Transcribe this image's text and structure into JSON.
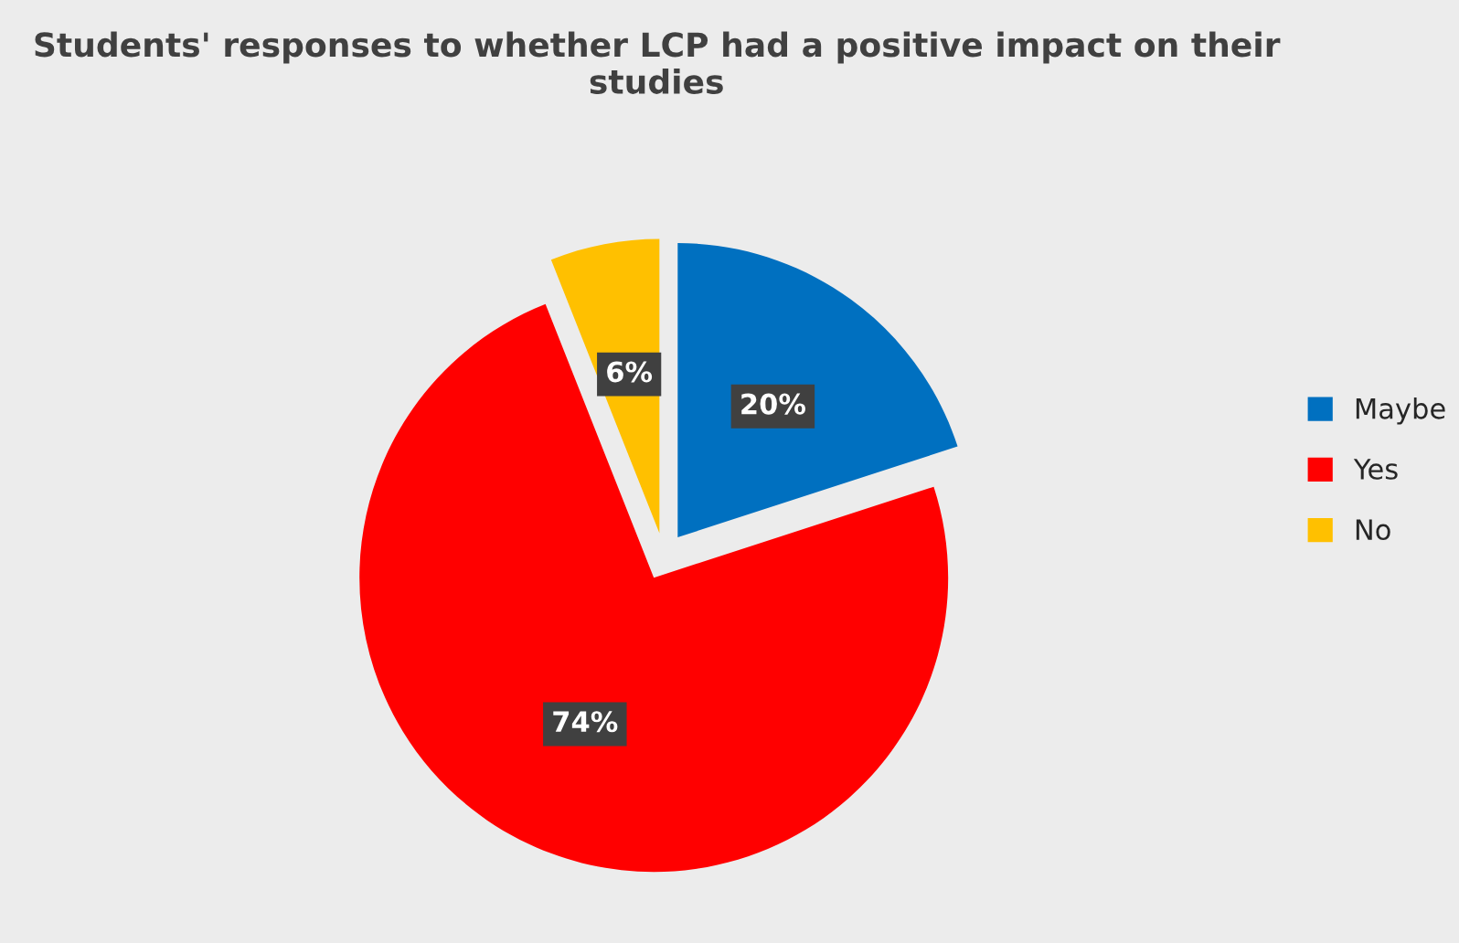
{
  "chart_data": {
    "type": "pie",
    "title": "Students' responses to whether LCP had a positive impact on their studies",
    "categories": [
      "Maybe",
      "Yes",
      "No"
    ],
    "values": [
      20,
      74,
      6
    ],
    "colors": [
      "#0070c0",
      "#ff0000",
      "#ffc000"
    ],
    "value_labels": [
      "20%",
      "74%",
      "6%"
    ],
    "legend": "right"
  }
}
